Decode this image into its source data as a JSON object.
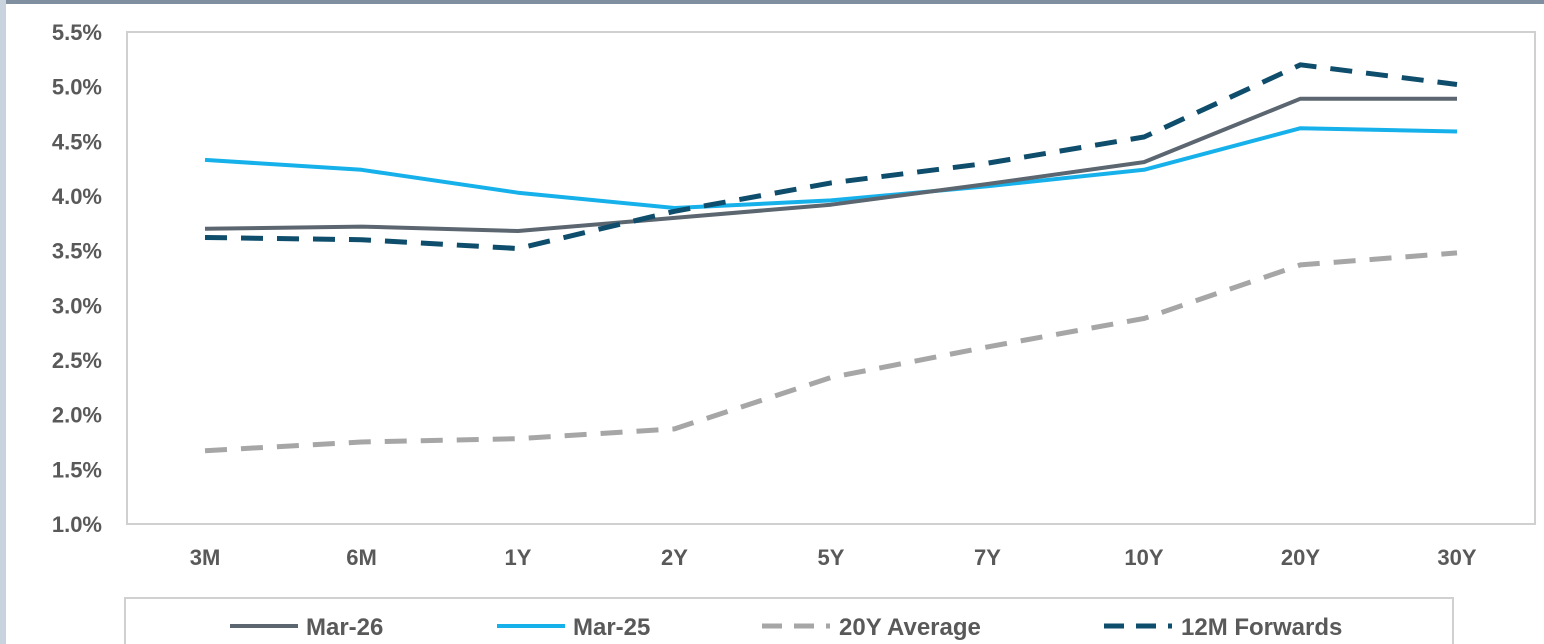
{
  "chart_data": {
    "type": "line",
    "title": "",
    "xlabel": "",
    "ylabel": "",
    "categories": [
      "3M",
      "6M",
      "1Y",
      "2Y",
      "5Y",
      "7Y",
      "10Y",
      "20Y",
      "30Y"
    ],
    "ylim": [
      1.0,
      5.5
    ],
    "yticks": [
      1.0,
      1.5,
      2.0,
      2.5,
      3.0,
      3.5,
      4.0,
      4.5,
      5.0,
      5.5
    ],
    "ytick_labels": [
      "1.0%",
      "1.5%",
      "2.0%",
      "2.5%",
      "3.0%",
      "3.5%",
      "4.0%",
      "4.5%",
      "5.0%",
      "5.5%"
    ],
    "grid": false,
    "legend_position": "bottom",
    "series": [
      {
        "name": "Mar-26",
        "values": [
          3.7,
          3.72,
          3.68,
          3.8,
          3.92,
          4.11,
          4.31,
          4.89,
          4.89
        ],
        "color": "#5b6670",
        "dash": "solid"
      },
      {
        "name": "Mar-25",
        "values": [
          4.33,
          4.24,
          4.03,
          3.89,
          3.96,
          4.09,
          4.24,
          4.62,
          4.59
        ],
        "color": "#16b1ea",
        "dash": "solid"
      },
      {
        "name": "20Y Average",
        "values": [
          1.67,
          1.75,
          1.78,
          1.87,
          2.34,
          2.62,
          2.88,
          3.37,
          3.48
        ],
        "color": "#a6a6a6",
        "dash": "dashed"
      },
      {
        "name": "12M Forwards",
        "values": [
          3.62,
          3.6,
          3.52,
          3.86,
          4.12,
          4.3,
          4.54,
          5.2,
          5.02
        ],
        "color": "#0e4d6b",
        "dash": "dashed"
      }
    ]
  }
}
